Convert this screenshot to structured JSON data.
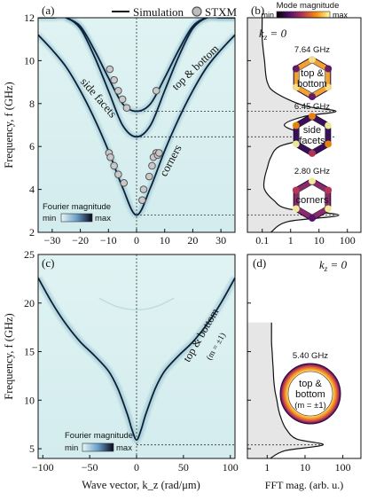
{
  "legend": {
    "sim_label": "Simulation",
    "stxm_label": "STXM"
  },
  "colorbar_top": {
    "title": "Mode magnitude",
    "min": "min",
    "max": "max"
  },
  "fourier_bar": {
    "title": "Fourier magnitude",
    "min": "min",
    "max": "max"
  },
  "chart_data": [
    {
      "panel": "(a)",
      "type": "heatmap",
      "xlabel": "",
      "ylabel": "Frequency, f (GHz)",
      "xlim": [
        -35,
        35
      ],
      "ylim": [
        2,
        12
      ],
      "xticks": [
        -30,
        -20,
        -10,
        0,
        10,
        20,
        30
      ],
      "yticks": [
        2,
        4,
        6,
        8,
        10,
        12
      ],
      "annotations": [
        "side facets",
        "corners",
        "top & bottom"
      ],
      "ref_lines_ghz": [
        2.8,
        6.45,
        7.64
      ],
      "series": [
        {
          "name": "Simulation",
          "x": [
            -35,
            -30,
            -25,
            -20,
            -15,
            -10,
            -5,
            0,
            5,
            10,
            15,
            20,
            25,
            30,
            35
          ],
          "y": [
            11.2,
            10.5,
            9.7,
            8.6,
            7.3,
            5.8,
            4.1,
            2.8,
            4.1,
            5.8,
            7.3,
            8.6,
            9.7,
            10.5,
            11.2
          ]
        },
        {
          "name": "Simulation",
          "x": [
            -35,
            -30,
            -25,
            -20,
            -15,
            -10,
            -5,
            0,
            5,
            10,
            15,
            20,
            25,
            30,
            35
          ],
          "y": [
            12,
            12,
            12,
            11.5,
            10.2,
            8.6,
            7.0,
            6.45,
            7.0,
            8.6,
            10.2,
            11.5,
            12,
            12,
            12
          ]
        },
        {
          "name": "Simulation",
          "x": [
            -25,
            -20,
            -15,
            -10,
            -5,
            0,
            5,
            10,
            15,
            20,
            25,
            30,
            35
          ],
          "y": [
            12,
            11.6,
            10.5,
            9.2,
            8.0,
            7.64,
            8.0,
            9.2,
            10.5,
            11.6,
            12,
            12,
            12
          ]
        },
        {
          "name": "STXM",
          "x": [
            -9.5,
            -8,
            -6.5,
            -5,
            -3.5,
            -9.8,
            -9.3,
            -8,
            -6.5,
            -4.5,
            7,
            6,
            7.5,
            8,
            5.5,
            4.5,
            2.5,
            2,
            7
          ],
          "y": [
            9.6,
            9.1,
            8.6,
            8.2,
            7.8,
            5.7,
            5.5,
            5.1,
            4.7,
            4.3,
            5.7,
            5.5,
            5.6,
            5.7,
            5.1,
            4.6,
            4.0,
            3.5,
            8.6
          ]
        }
      ]
    },
    {
      "panel": "(b)",
      "type": "area",
      "title": "k_z = 0",
      "xscale": "log",
      "xlim": [
        0.03,
        300
      ],
      "ylim": [
        2,
        12
      ],
      "xticks": [
        "0.1",
        "1",
        "10",
        "100"
      ],
      "peaks": [
        {
          "freq": "7.64 GHz",
          "label_lines": [
            "top &",
            "bottom"
          ]
        },
        {
          "freq": "6.45 GHz",
          "label_lines": [
            "side",
            "facets"
          ]
        },
        {
          "freq": "2.80 GHz",
          "label_lines": [
            "corners"
          ]
        }
      ],
      "series": [
        {
          "y": [
            2,
            2.5,
            2.8,
            3.1,
            3.5,
            4,
            4.5,
            5,
            5.5,
            6,
            6.3,
            6.45,
            6.6,
            7,
            7.4,
            7.64,
            7.9,
            8.5,
            9,
            10,
            11,
            12
          ],
          "x": [
            0.2,
            0.8,
            50,
            0.8,
            0.25,
            0.12,
            0.12,
            0.15,
            0.2,
            0.4,
            3,
            15,
            3,
            0.6,
            3,
            40,
            3,
            0.3,
            0.15,
            0.12,
            0.1,
            0.1
          ]
        }
      ]
    },
    {
      "panel": "(c)",
      "type": "heatmap",
      "xlabel": "Wave vector, k_z (rad/μm)",
      "ylabel": "Frequency, f (GHz)",
      "xlim": [
        -105,
        105
      ],
      "ylim": [
        4,
        25
      ],
      "xticks": [
        -100,
        -50,
        0,
        50,
        100
      ],
      "yticks": [
        5,
        10,
        15,
        20,
        25
      ],
      "annotations": [
        "top & bottom",
        "(m = ±1)"
      ],
      "ref_lines_ghz": [
        5.4
      ],
      "series": [
        {
          "name": "Simulation",
          "x": [
            -105,
            -90,
            -75,
            -60,
            -45,
            -30,
            -20,
            -10,
            -5,
            0,
            5,
            10,
            20,
            30,
            45,
            60,
            75,
            90,
            105
          ],
          "y": [
            22.6,
            20.0,
            17.8,
            16.0,
            14.6,
            13.0,
            11.2,
            8.6,
            7.0,
            5.9,
            7.0,
            8.6,
            11.2,
            13.0,
            14.6,
            16.0,
            17.8,
            20.0,
            22.6
          ]
        }
      ]
    },
    {
      "panel": "(d)",
      "type": "area",
      "title": "k_z = 0",
      "xscale": "log",
      "xlim": [
        0.3,
        300
      ],
      "ylim": [
        4,
        25
      ],
      "xticks": [
        "1",
        "10",
        "100"
      ],
      "xlabel": "FFT mag. (arb. u.)",
      "peaks": [
        {
          "freq": "5.40 GHz",
          "label_lines": [
            "top &",
            "bottom",
            "(m = ±1)"
          ]
        }
      ],
      "series": [
        {
          "y": [
            4,
            4.8,
            5.4,
            6,
            7,
            8,
            9,
            10,
            11,
            12,
            13,
            14,
            15,
            16,
            17,
            18
          ],
          "x": [
            1.2,
            3,
            30,
            6,
            3.2,
            2.4,
            2.0,
            1.8,
            1.6,
            1.5,
            1.45,
            1.4,
            1.35,
            1.3,
            1.3,
            1.3
          ]
        }
      ]
    }
  ]
}
